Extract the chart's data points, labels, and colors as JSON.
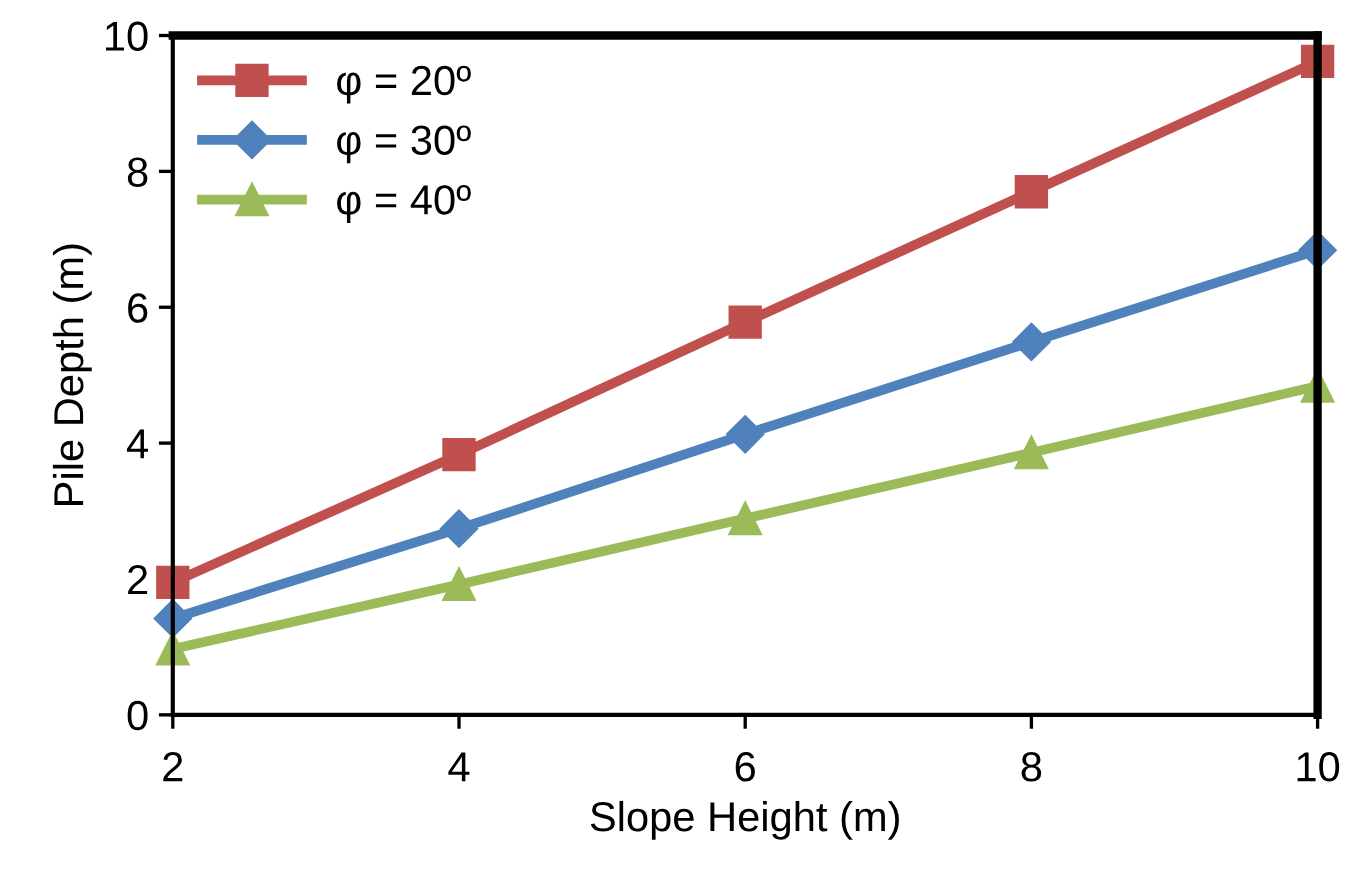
{
  "chart_data": {
    "type": "line",
    "xlabel": "Slope Height (m)",
    "ylabel": "Pile Depth (m)",
    "x": [
      2,
      4,
      6,
      8,
      10
    ],
    "series": [
      {
        "name": "φ = 20º",
        "color": "#c0504d",
        "marker": "square",
        "values": [
          1.95,
          3.83,
          5.78,
          7.7,
          9.62
        ]
      },
      {
        "name": "φ = 30º",
        "color": "#4f81bd",
        "marker": "diamond",
        "values": [
          1.42,
          2.74,
          4.13,
          5.49,
          6.84
        ]
      },
      {
        "name": "φ = 40º",
        "color": "#9bbb59",
        "marker": "triangle",
        "values": [
          0.97,
          1.92,
          2.89,
          3.86,
          4.84
        ]
      }
    ],
    "xlim": [
      2,
      10
    ],
    "xticks": [
      2,
      4,
      6,
      8,
      10
    ],
    "ylim": [
      0,
      10
    ],
    "yticks": [
      0,
      2,
      4,
      6,
      8,
      10
    ],
    "grid": false,
    "legend": "top left",
    "line_style": "solid"
  }
}
